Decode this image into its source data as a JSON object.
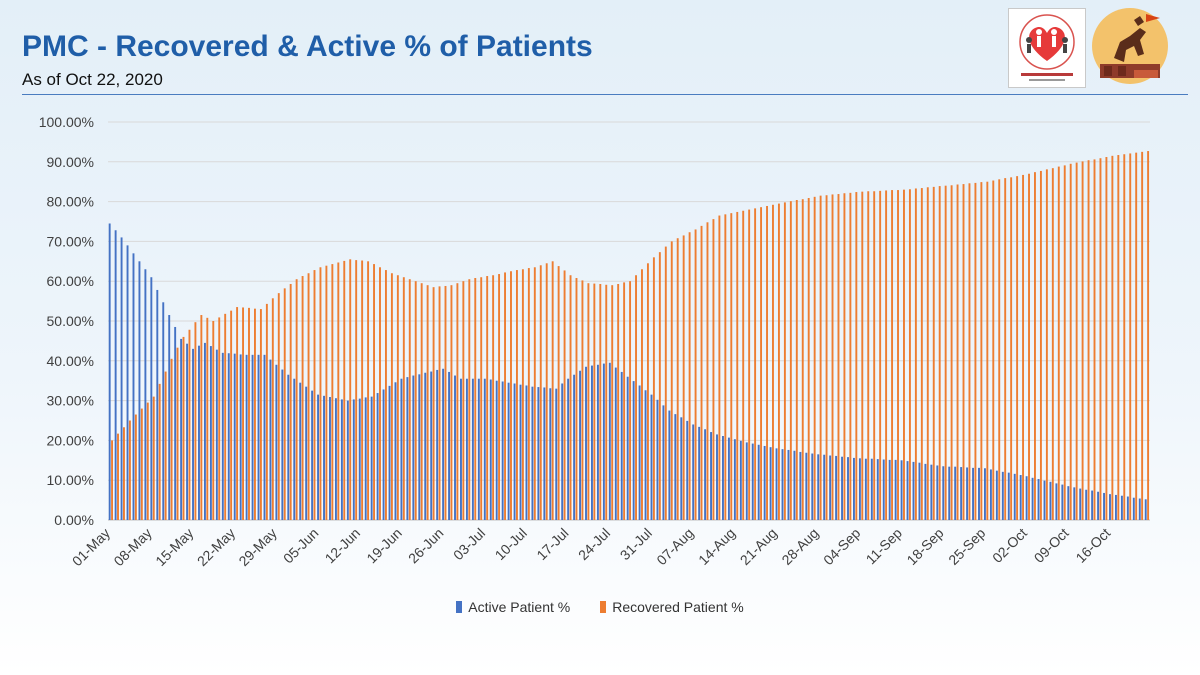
{
  "header": {
    "title": "PMC - Recovered & Active % of Patients",
    "subtitle": "As of Oct 22, 2020"
  },
  "logos": [
    {
      "name": "health-department-logo",
      "icon": "heart-family-icon"
    },
    {
      "name": "pmc-logo",
      "icon": "horse-rider-emblem-icon"
    }
  ],
  "colors": {
    "active": "#4472c4",
    "recovered": "#ed7d31",
    "grid": "#d9d9d9"
  },
  "chart_data": {
    "type": "bar",
    "title": "PMC - Recovered & Active % of Patients",
    "subtitle": "As of Oct 22, 2020",
    "ylim": [
      0,
      100
    ],
    "yticks": [
      "0.00%",
      "10.00%",
      "20.00%",
      "30.00%",
      "40.00%",
      "50.00%",
      "60.00%",
      "70.00%",
      "80.00%",
      "90.00%",
      "100.00%"
    ],
    "grid": true,
    "legend_position": "bottom",
    "x_labels": [
      "01-May",
      "08-May",
      "15-May",
      "22-May",
      "29-May",
      "05-Jun",
      "12-Jun",
      "19-Jun",
      "26-Jun",
      "03-Jul",
      "10-Jul",
      "17-Jul",
      "24-Jul",
      "31-Jul",
      "07-Aug",
      "14-Aug",
      "21-Aug",
      "28-Aug",
      "04-Sep",
      "11-Sep",
      "18-Sep",
      "25-Sep",
      "02-Oct",
      "09-Oct",
      "16-Oct"
    ],
    "x_start": "2020-05-01",
    "x_end": "2020-10-22",
    "series": [
      {
        "name": "Active Patient %",
        "key": "active",
        "anchors": [
          [
            "2020-05-01",
            74.5
          ],
          [
            "2020-05-03",
            71
          ],
          [
            "2020-05-05",
            67
          ],
          [
            "2020-05-08",
            61
          ],
          [
            "2020-05-11",
            51.5
          ],
          [
            "2020-05-13",
            45.5
          ],
          [
            "2020-05-15",
            43
          ],
          [
            "2020-05-17",
            44.5
          ],
          [
            "2020-05-20",
            42
          ],
          [
            "2020-05-24",
            41.5
          ],
          [
            "2020-05-27",
            41.5
          ],
          [
            "2020-05-31",
            36.5
          ],
          [
            "2020-06-05",
            31.5
          ],
          [
            "2020-06-10",
            30
          ],
          [
            "2020-06-14",
            31
          ],
          [
            "2020-06-19",
            35.5
          ],
          [
            "2020-06-23",
            37
          ],
          [
            "2020-06-26",
            38
          ],
          [
            "2020-06-29",
            35.5
          ],
          [
            "2020-07-03",
            35.5
          ],
          [
            "2020-07-07",
            34.5
          ],
          [
            "2020-07-11",
            33.5
          ],
          [
            "2020-07-15",
            33
          ],
          [
            "2020-07-17",
            35.5
          ],
          [
            "2020-07-20",
            38.5
          ],
          [
            "2020-07-24",
            39.5
          ],
          [
            "2020-07-27",
            36
          ],
          [
            "2020-07-31",
            31.5
          ],
          [
            "2020-08-03",
            27.5
          ],
          [
            "2020-08-07",
            24
          ],
          [
            "2020-08-11",
            21.5
          ],
          [
            "2020-08-16",
            19.5
          ],
          [
            "2020-08-21",
            18
          ],
          [
            "2020-08-28",
            16.5
          ],
          [
            "2020-09-04",
            15.5
          ],
          [
            "2020-09-11",
            15
          ],
          [
            "2020-09-18",
            13.5
          ],
          [
            "2020-09-25",
            13
          ],
          [
            "2020-10-02",
            11
          ],
          [
            "2020-10-09",
            8.5
          ],
          [
            "2020-10-16",
            6.5
          ],
          [
            "2020-10-22",
            5.2
          ]
        ]
      },
      {
        "name": "Recovered Patient %",
        "key": "recovered",
        "anchors": [
          [
            "2020-05-01",
            20
          ],
          [
            "2020-05-04",
            25
          ],
          [
            "2020-05-08",
            31
          ],
          [
            "2020-05-11",
            40.5
          ],
          [
            "2020-05-13",
            46
          ],
          [
            "2020-05-16",
            51.5
          ],
          [
            "2020-05-18",
            50
          ],
          [
            "2020-05-22",
            53.5
          ],
          [
            "2020-05-26",
            53
          ],
          [
            "2020-05-29",
            57
          ],
          [
            "2020-06-01",
            60.5
          ],
          [
            "2020-06-05",
            63.5
          ],
          [
            "2020-06-10",
            65.5
          ],
          [
            "2020-06-13",
            65
          ],
          [
            "2020-06-17",
            62
          ],
          [
            "2020-06-21",
            60
          ],
          [
            "2020-06-24",
            58.5
          ],
          [
            "2020-06-27",
            59
          ],
          [
            "2020-06-30",
            60.5
          ],
          [
            "2020-07-04",
            61.5
          ],
          [
            "2020-07-07",
            62.5
          ],
          [
            "2020-07-11",
            63.5
          ],
          [
            "2020-07-14",
            65
          ],
          [
            "2020-07-17",
            61.5
          ],
          [
            "2020-07-20",
            59.5
          ],
          [
            "2020-07-24",
            59
          ],
          [
            "2020-07-27",
            60
          ],
          [
            "2020-07-31",
            66
          ],
          [
            "2020-08-03",
            70
          ],
          [
            "2020-08-07",
            73
          ],
          [
            "2020-08-11",
            76.5
          ],
          [
            "2020-08-16",
            78
          ],
          [
            "2020-08-21",
            79.5
          ],
          [
            "2020-08-28",
            81.5
          ],
          [
            "2020-09-04",
            82.5
          ],
          [
            "2020-09-11",
            83
          ],
          [
            "2020-09-18",
            84
          ],
          [
            "2020-09-25",
            85
          ],
          [
            "2020-10-02",
            87
          ],
          [
            "2020-10-09",
            89.5
          ],
          [
            "2020-10-16",
            91.5
          ],
          [
            "2020-10-22",
            92.7
          ]
        ]
      }
    ]
  }
}
